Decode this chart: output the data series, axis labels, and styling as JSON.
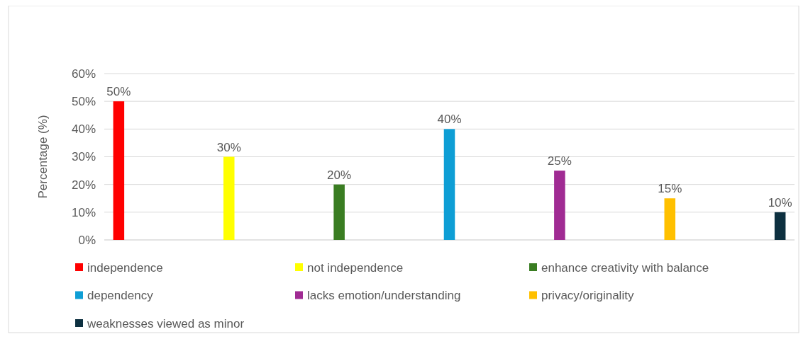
{
  "chart_data": {
    "type": "bar",
    "ylabel": "Percentage (%)",
    "categories": [
      null
    ],
    "series": [
      {
        "name": "independence",
        "color": "#ff0000",
        "values": [
          50
        ]
      },
      {
        "name": "not independence",
        "color": "#ffff00",
        "values": [
          30
        ]
      },
      {
        "name": "enhance creativity with balance",
        "color": "#3a7d22",
        "values": [
          20
        ]
      },
      {
        "name": "dependency",
        "color": "#0e9ed5",
        "values": [
          40
        ]
      },
      {
        "name": "lacks emotion/understanding",
        "color": "#a02b93",
        "values": [
          25
        ]
      },
      {
        "name": "privacy/originality",
        "color": "#ffc000",
        "values": [
          15
        ]
      },
      {
        "name": "weaknesses viewed as minor",
        "color": "#0d3040",
        "values": [
          10
        ]
      }
    ],
    "ylim": [
      0,
      60
    ],
    "yticks": [
      {
        "value": 0,
        "label": "0%"
      },
      {
        "value": 10,
        "label": "10%"
      },
      {
        "value": 20,
        "label": "20%"
      },
      {
        "value": 30,
        "label": "30%"
      },
      {
        "value": 40,
        "label": "40%"
      },
      {
        "value": 50,
        "label": "50%"
      },
      {
        "value": 60,
        "label": "60%"
      }
    ],
    "value_labels": [
      [
        "50%"
      ],
      [
        "30%"
      ],
      [
        "20%"
      ],
      [
        "40%"
      ],
      [
        "25%"
      ],
      [
        "15%"
      ],
      [
        "10%"
      ]
    ],
    "grid": "y",
    "legend": "bottom"
  }
}
